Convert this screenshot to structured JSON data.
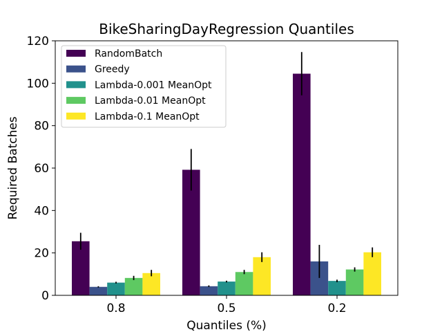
{
  "chart_data": {
    "type": "bar",
    "title": "BikeSharingDayRegression Quantiles",
    "xlabel": "Quantiles (%)",
    "ylabel": "Required Batches",
    "categories": [
      "0.8",
      "0.5",
      "0.2"
    ],
    "ylim": [
      0,
      120
    ],
    "yticks": [
      0,
      20,
      40,
      60,
      80,
      100,
      120
    ],
    "legend_position": "top-left",
    "series": [
      {
        "name": "RandomBatch",
        "color": "#440154",
        "values": [
          25.5,
          59.2,
          104.5
        ],
        "errors": [
          4.0,
          9.8,
          10.2
        ]
      },
      {
        "name": "Greedy",
        "color": "#3b528b",
        "values": [
          4.0,
          4.3,
          16.0
        ],
        "errors": [
          0.3,
          0.4,
          7.8
        ]
      },
      {
        "name": "Lambda-0.001 MeanOpt",
        "color": "#21918c",
        "values": [
          6.0,
          6.5,
          6.8
        ],
        "errors": [
          0.4,
          0.4,
          0.6
        ]
      },
      {
        "name": "Lambda-0.01 MeanOpt",
        "color": "#5ec962",
        "values": [
          8.2,
          11.0,
          12.2
        ],
        "errors": [
          1.0,
          1.0,
          1.0
        ]
      },
      {
        "name": "Lambda-0.1 MeanOpt",
        "color": "#fde725",
        "values": [
          10.5,
          18.0,
          20.3
        ],
        "errors": [
          1.5,
          2.3,
          2.3
        ]
      }
    ]
  }
}
